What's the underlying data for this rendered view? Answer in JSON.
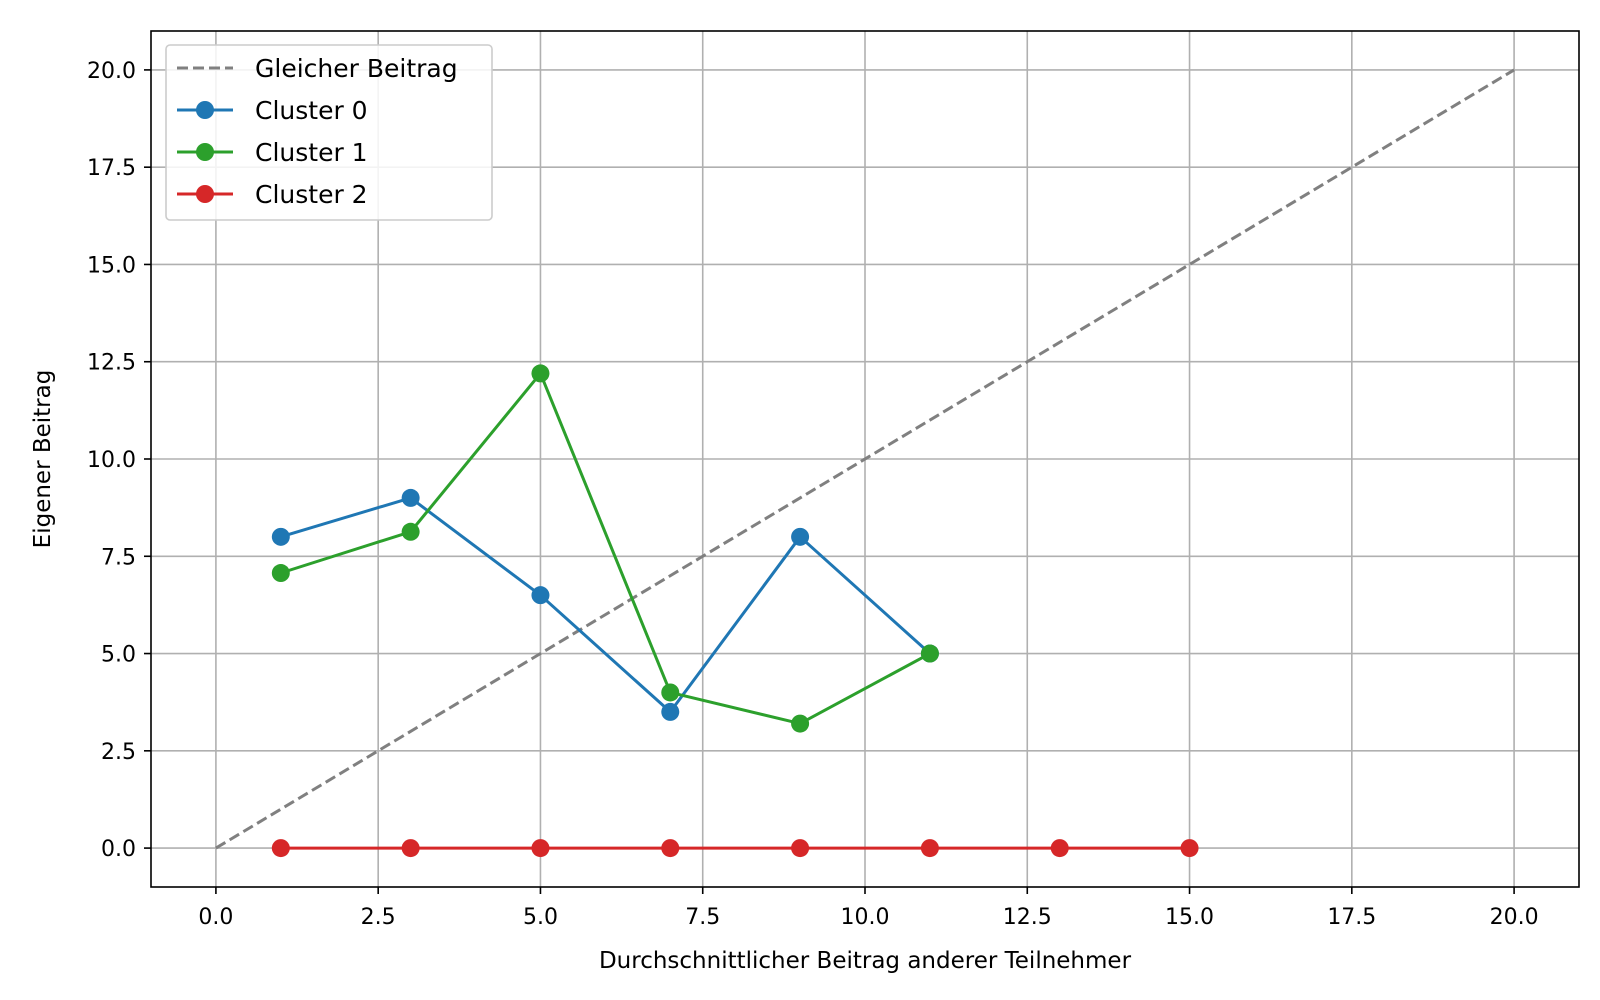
{
  "chart_data": {
    "type": "line",
    "title": "",
    "xlabel": "Durchschnittlicher Beitrag anderer Teilnehmer",
    "ylabel": "Eigener Beitrag",
    "xlim": [
      -1.0,
      21.0
    ],
    "ylim": [
      -1.0,
      21.0
    ],
    "xticks": [
      0.0,
      2.5,
      5.0,
      7.5,
      10.0,
      12.5,
      15.0,
      17.5,
      20.0
    ],
    "yticks": [
      0.0,
      2.5,
      5.0,
      7.5,
      10.0,
      12.5,
      15.0,
      17.5,
      20.0
    ],
    "xtick_labels": [
      "0.0",
      "2.5",
      "5.0",
      "7.5",
      "10.0",
      "12.5",
      "15.0",
      "17.5",
      "20.0"
    ],
    "ytick_labels": [
      "0.0",
      "2.5",
      "5.0",
      "7.5",
      "10.0",
      "12.5",
      "15.0",
      "17.5",
      "20.0"
    ],
    "grid": true,
    "legend_position": "top-left",
    "reference_line": {
      "name": "Gleicher Beitrag",
      "style": "dashed",
      "color": "#808080",
      "x": [
        0,
        20
      ],
      "y": [
        0,
        20
      ]
    },
    "series": [
      {
        "name": "Cluster 0",
        "color": "#1f77b4",
        "x": [
          1,
          3,
          5,
          7,
          9,
          11
        ],
        "y": [
          8.0,
          9.0,
          6.5,
          3.5,
          8.0,
          5.0
        ]
      },
      {
        "name": "Cluster 1",
        "color": "#2ca02c",
        "x": [
          1,
          3,
          5,
          7,
          9,
          11
        ],
        "y": [
          7.07,
          8.13,
          12.2,
          4.0,
          3.2,
          5.0
        ]
      },
      {
        "name": "Cluster 2",
        "color": "#d62728",
        "x": [
          1,
          3,
          5,
          7,
          9,
          11,
          13,
          15
        ],
        "y": [
          0,
          0,
          0,
          0,
          0,
          0,
          0,
          0
        ]
      }
    ]
  }
}
